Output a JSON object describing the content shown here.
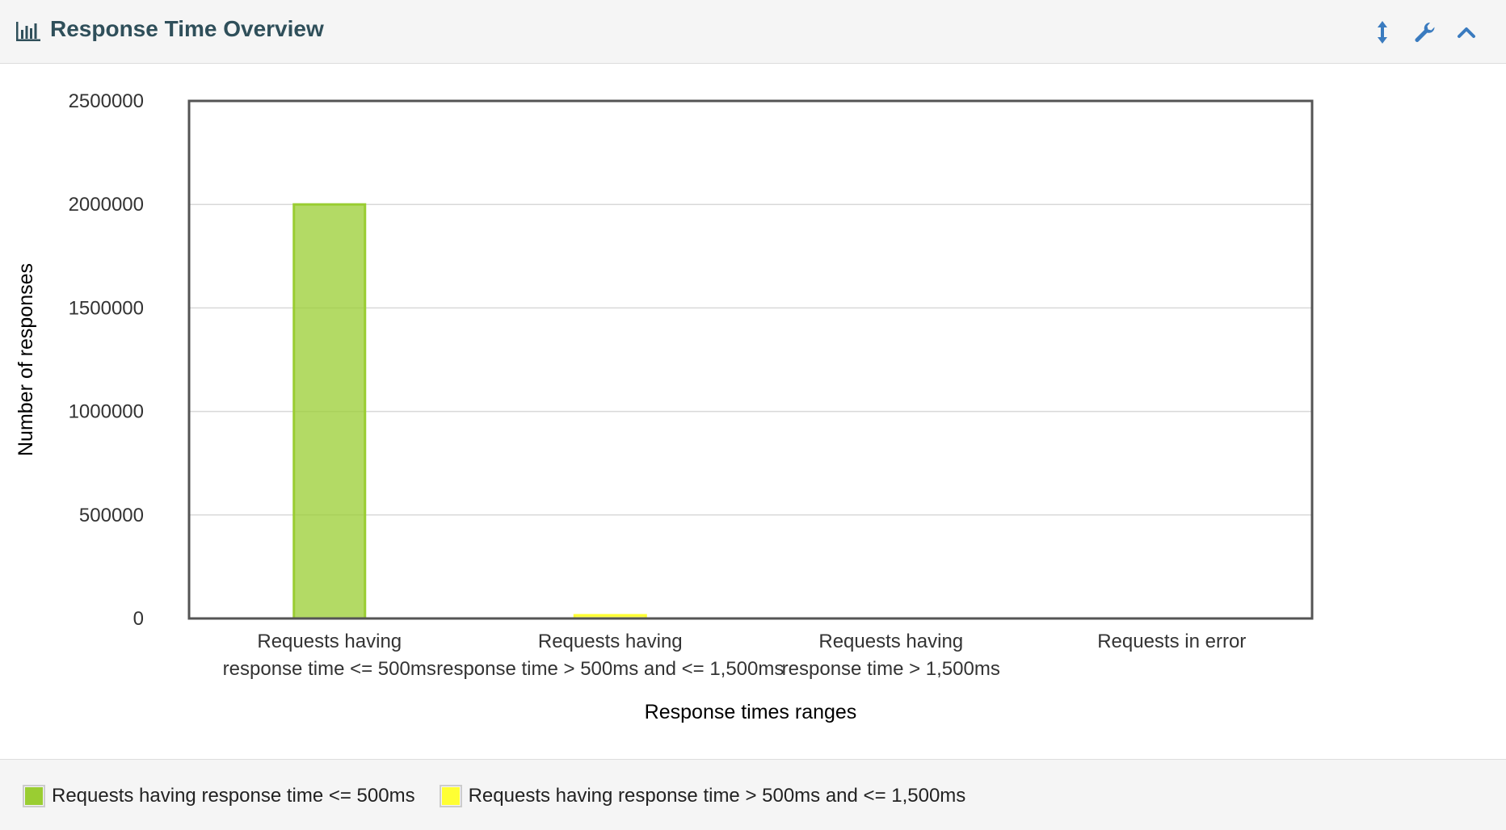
{
  "panel": {
    "title": "Response Time Overview",
    "icons": {
      "title_icon": "bar-chart-icon",
      "resize": "vertical-resize-icon",
      "settings": "wrench-icon",
      "collapse": "chevron-up-icon"
    },
    "accent_color": "#3a7bbf",
    "title_color": "#2f4f5a"
  },
  "chart_data": {
    "type": "bar",
    "title": "",
    "xlabel": "Response times ranges",
    "ylabel": "Number of responses",
    "ylim": [
      0,
      2500000
    ],
    "yticks": [
      "0",
      "500000",
      "1000000",
      "1500000",
      "2000000",
      "2500000"
    ],
    "ytick_values": [
      0,
      500000,
      1000000,
      1500000,
      2000000,
      2500000
    ],
    "grid": true,
    "categories": [
      [
        "Requests having",
        "response time <= 500ms"
      ],
      [
        "Requests having",
        "response time > 500ms and <= 1,500ms"
      ],
      [
        "Requests having",
        "response time > 1,500ms"
      ],
      [
        "Requests in error"
      ]
    ],
    "series": [
      {
        "name": "Requests having response time <= 500ms",
        "color": "#9acd32",
        "values": [
          2000000,
          0,
          0,
          0
        ]
      },
      {
        "name": "Requests having response time > 500ms and <= 1,500ms",
        "color": "#ffff33",
        "values": [
          0,
          9000,
          0,
          0
        ]
      }
    ],
    "legend_position": "bottom"
  }
}
